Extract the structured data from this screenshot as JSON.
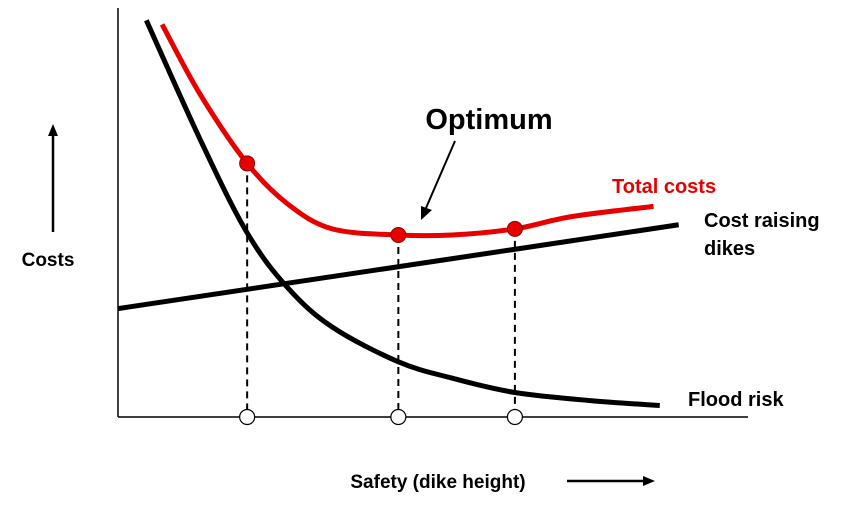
{
  "chart_data": {
    "type": "line",
    "title": "",
    "xlabel": "Safety (dike height)",
    "ylabel": "Costs",
    "xlim": [
      0,
      10
    ],
    "ylim": [
      0,
      10
    ],
    "grid": false,
    "legend": "none",
    "annotation": {
      "text": "Optimum",
      "points_to_x": 4.45
    },
    "marked_points": [
      2.05,
      4.45,
      6.3
    ],
    "series": [
      {
        "name": "Total costs",
        "color": "#e60000",
        "x": [
          0.7,
          1.3,
          2.05,
          2.7,
          3.4,
          4.45,
          5.3,
          6.3,
          7.2,
          8.5
        ],
        "y": [
          9.6,
          7.9,
          6.2,
          5.2,
          4.6,
          4.45,
          4.45,
          4.6,
          4.9,
          5.15
        ]
      },
      {
        "name": "Cost raising dikes",
        "color": "#000000",
        "x": [
          0.0,
          8.9
        ],
        "y": [
          2.65,
          4.7
        ]
      },
      {
        "name": "Flood risk",
        "color": "#000000",
        "x": [
          0.45,
          1.3,
          2.05,
          2.7,
          3.4,
          4.45,
          5.3,
          6.3,
          7.5,
          8.6
        ],
        "y": [
          9.7,
          6.8,
          4.5,
          3.15,
          2.2,
          1.35,
          0.95,
          0.6,
          0.4,
          0.28
        ]
      }
    ],
    "series_label_lines": {
      "Cost raising dikes": [
        "Cost raising",
        "dikes"
      ]
    }
  }
}
